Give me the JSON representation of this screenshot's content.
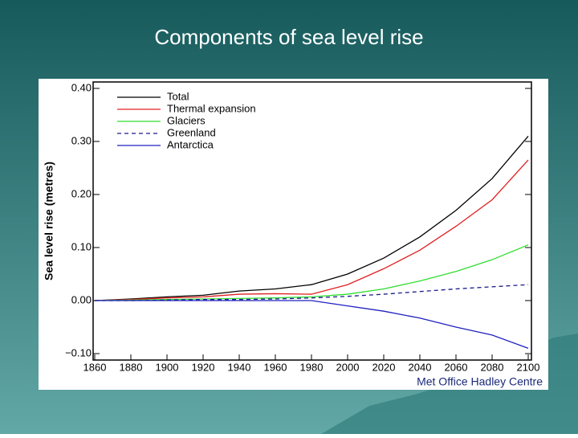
{
  "chart_data": {
    "type": "line",
    "title": "Components of sea level rise",
    "ylabel": "Sea level rise (metres)",
    "credit": "Met Office Hadley Centre",
    "x": [
      1860,
      1880,
      1900,
      1920,
      1940,
      1960,
      1980,
      2000,
      2020,
      2040,
      2060,
      2080,
      2100
    ],
    "series": [
      {
        "name": "Total",
        "color": "#000000",
        "dashed": false,
        "values": [
          0,
          0.003,
          0.007,
          0.01,
          0.018,
          0.022,
          0.03,
          0.05,
          0.08,
          0.12,
          0.17,
          0.23,
          0.31
        ]
      },
      {
        "name": "Thermal expansion",
        "color": "#e02020",
        "dashed": false,
        "values": [
          0,
          0.002,
          0.005,
          0.007,
          0.012,
          0.013,
          0.012,
          0.03,
          0.06,
          0.095,
          0.14,
          0.19,
          0.265
        ]
      },
      {
        "name": "Glaciers",
        "color": "#30dd30",
        "dashed": false,
        "values": [
          0,
          0.001,
          0.002,
          0.003,
          0.004,
          0.005,
          0.007,
          0.012,
          0.022,
          0.037,
          0.055,
          0.077,
          0.105
        ]
      },
      {
        "name": "Greenland",
        "color": "#1a1a8a",
        "dashed": true,
        "values": [
          0,
          0,
          0.001,
          0.002,
          0.002,
          0.003,
          0.005,
          0.008,
          0.012,
          0.017,
          0.022,
          0.026,
          0.03
        ]
      },
      {
        "name": "Antarctica",
        "color": "#2020c0",
        "dashed": false,
        "values": [
          0,
          0,
          0,
          0,
          0,
          0,
          0,
          -0.01,
          -0.02,
          -0.033,
          -0.05,
          -0.065,
          -0.09
        ]
      }
    ],
    "xlim": [
      1860,
      2100
    ],
    "xticks": [
      1860,
      1880,
      1900,
      1920,
      1940,
      1960,
      1980,
      2000,
      2020,
      2040,
      2060,
      2080,
      2100
    ],
    "ylim": [
      -0.1,
      0.4
    ],
    "yticks": [
      {
        "value": -0.1,
        "label": "−0.10"
      },
      {
        "value": 0,
        "label": "0.00"
      },
      {
        "value": 0.1,
        "label": "0.10"
      },
      {
        "value": 0.2,
        "label": "0.20"
      },
      {
        "value": 0.3,
        "label": "0.30"
      },
      {
        "value": 0.4,
        "label": "0.40"
      }
    ]
  }
}
